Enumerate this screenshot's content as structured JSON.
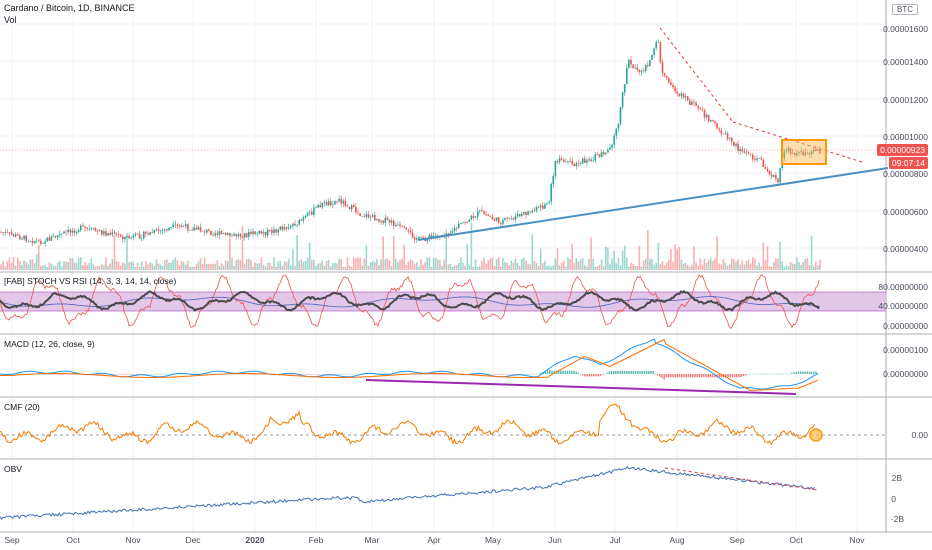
{
  "header": {
    "symbol_title": "Cardano / Bitcoin, 1D, BINANCE",
    "volume_label": "Vol",
    "currency_tag": "BTC"
  },
  "price_axis": {
    "ticks": [
      "0.00001600",
      "0.00001400",
      "0.00001200",
      "0.00001000",
      "0.00000800",
      "0.00000600",
      "0.00000400"
    ],
    "last_price": "0.00000923",
    "countdown": "09:07:14"
  },
  "panes": {
    "stoch": {
      "title": "[FAB] STOCH VS RSI (14, 3, 3, 14, 14, close)",
      "ticks": [
        "80.00000000",
        "40.00000000",
        "0.00000000"
      ]
    },
    "macd": {
      "title": "MACD (12, 26, close, 9)",
      "ticks": [
        "0.00000100",
        "0.00000000"
      ]
    },
    "cmf": {
      "title": "CMF (20)",
      "ticks": [
        "0.00"
      ]
    },
    "obv": {
      "title": "OBV",
      "ticks": [
        "2B",
        "0",
        "-2B"
      ]
    }
  },
  "time_axis": [
    "Sep",
    "Oct",
    "Nov",
    "Dec",
    "2020",
    "Feb",
    "Mar",
    "Apr",
    "May",
    "Jun",
    "Jul",
    "Aug",
    "Sep",
    "Oct",
    "Nov"
  ],
  "colors": {
    "up": "#26a69a",
    "down": "#ef5350",
    "trendline": "#4a90c2",
    "resistance": "#e53935",
    "highlight_box": "#ff9800",
    "macd_divergence": "#9c27b0",
    "cmf_line": "#f57c00",
    "obv_line": "#3f6fb5",
    "stoch_band": "#d8b4e2"
  }
}
